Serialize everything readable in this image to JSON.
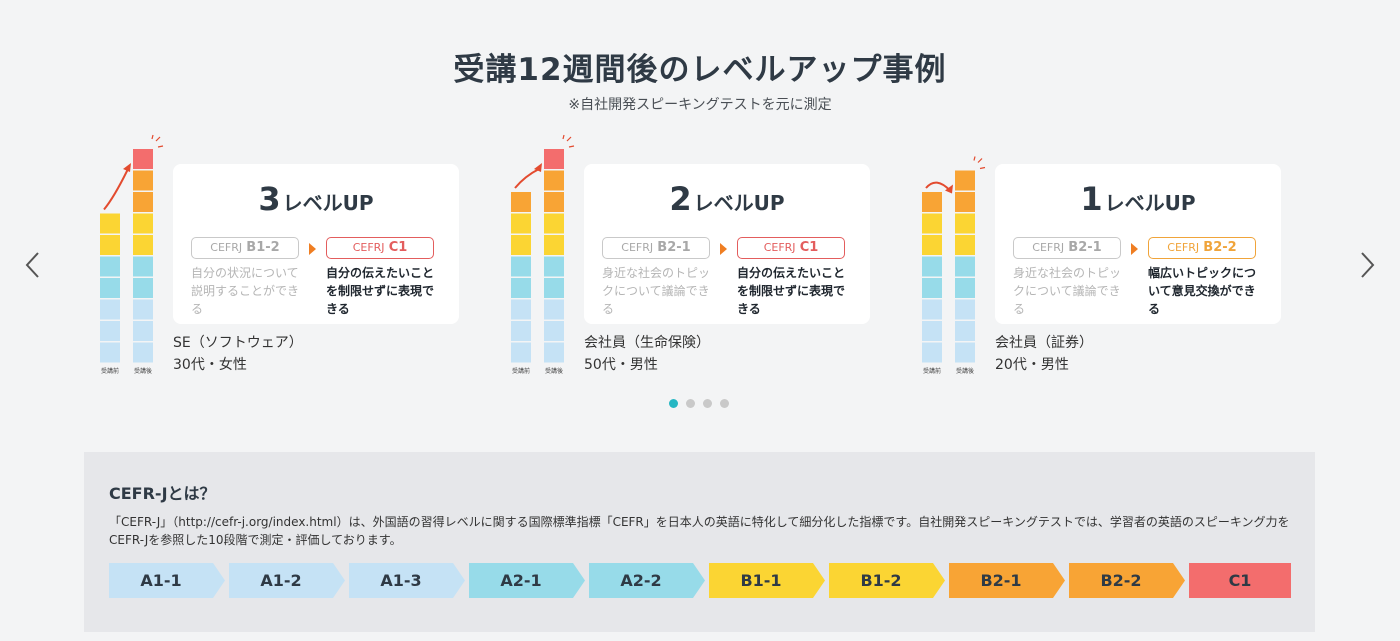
{
  "header": {
    "title": "受講12週間後のレベルアップ事例",
    "note": "※自社開発スピーキングテストを元に測定"
  },
  "carousel": {
    "prev_icon": "chevron-left-icon",
    "next_icon": "chevron-right-icon",
    "dots": [
      true,
      false,
      false,
      false
    ]
  },
  "colors": {
    "A1": "#c5e2f5",
    "A2": "#97dbe9",
    "B1": "#fbd533",
    "B2": "#f8a435",
    "C1": "#f36d6d",
    "accent": "#26b7c3"
  },
  "cases": [
    {
      "level_num": "3",
      "level_unit": "レベルUP",
      "before_prefix": "CEFRJ",
      "before_level": "B1-2",
      "after_prefix": "CEFRJ",
      "after_level": "C1",
      "after_color": "red",
      "before_desc": "自分の状況について説明することができる",
      "after_desc": "自分の伝えたいことを制限せずに表現できる",
      "person_line1": "SE（ソフトウェア）",
      "person_line2": "30代・女性",
      "bar_before_label": "受講前",
      "bar_after_label": "受講後",
      "before_steps": 7,
      "after_steps": 10
    },
    {
      "level_num": "2",
      "level_unit": "レベルUP",
      "before_prefix": "CEFRJ",
      "before_level": "B2-1",
      "after_prefix": "CEFRJ",
      "after_level": "C1",
      "after_color": "red",
      "before_desc": "身近な社会のトピックについて議論できる",
      "after_desc": "自分の伝えたいことを制限せずに表現できる",
      "person_line1": "会社員（生命保険）",
      "person_line2": "50代・男性",
      "bar_before_label": "受講前",
      "bar_after_label": "受講後",
      "before_steps": 8,
      "after_steps": 10
    },
    {
      "level_num": "1",
      "level_unit": "レベルUP",
      "before_prefix": "CEFRJ",
      "before_level": "B2-1",
      "after_prefix": "CEFRJ",
      "after_level": "B2-2",
      "after_color": "orange",
      "before_desc": "身近な社会のトピックについて議論できる",
      "after_desc": "幅広いトピックについて意見交換ができる",
      "person_line1": "会社員（証券）",
      "person_line2": "20代・男性",
      "bar_before_label": "受講前",
      "bar_after_label": "受講後",
      "before_steps": 8,
      "after_steps": 9
    }
  ],
  "cefr": {
    "title": "CEFR-Jとは？",
    "text": "「CEFR-J」（http://cefr-j.org/index.html）は、外国語の習得レベルに関する国際標準指標「CEFR」を日本人の英語に特化して細分化した指標です。自社開発スピーキングテストでは、学習者の英語のスピーキング力をCEFR-Jを参照した10段階で測定・評価しております。",
    "steps": [
      "A1-1",
      "A1-2",
      "A1-3",
      "A2-1",
      "A2-2",
      "B1-1",
      "B1-2",
      "B2-1",
      "B2-2",
      "C1"
    ]
  }
}
